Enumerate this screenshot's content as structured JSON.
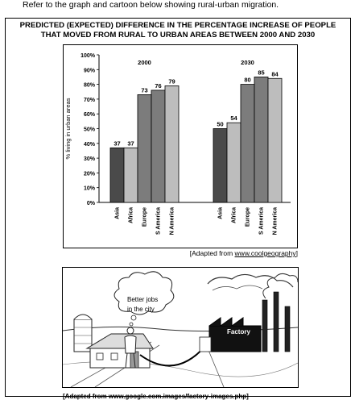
{
  "intro": "Refer to the graph and cartoon below showing rural-urban migration.",
  "title_line1": "PREDICTED (EXPECTED) DIFFERENCE IN THE PERCENTAGE INCREASE OF PEOPLE",
  "title_line2": "THAT MOVED FROM RURAL TO URBAN AREAS BETWEEN 2000 AND 2030",
  "source": {
    "prefix": "[Adapted from ",
    "link": "www.coolgeography",
    "suffix": "]"
  },
  "cartoon": {
    "bubble_line1": "Better jobs",
    "bubble_line2": "in the city",
    "factory_label": "Factory"
  },
  "caption": "[Adapted from www.google.com.images/factory-images.php]",
  "colors": {
    "bar_dark": "#4a4a4a",
    "bar_mid": "#7c7c7c",
    "bar_light": "#bdbdbd"
  },
  "chart_data": {
    "type": "bar",
    "title": "",
    "ylabel": "% living in urban areas",
    "ylim": [
      0,
      100
    ],
    "yticks": [
      "0%",
      "10%",
      "20%",
      "30%",
      "40%",
      "50%",
      "60%",
      "70%",
      "80%",
      "90%",
      "100%"
    ],
    "groups": [
      {
        "name": "2000",
        "categories": [
          "Asia",
          "Africa",
          "Europe",
          "S America",
          "N America"
        ],
        "values": [
          37,
          37,
          73,
          76,
          79
        ]
      },
      {
        "name": "2030",
        "categories": [
          "Asia",
          "Africa",
          "Europe",
          "S America",
          "N America"
        ],
        "values": [
          50,
          54,
          80,
          85,
          84
        ]
      }
    ],
    "grid": false
  }
}
